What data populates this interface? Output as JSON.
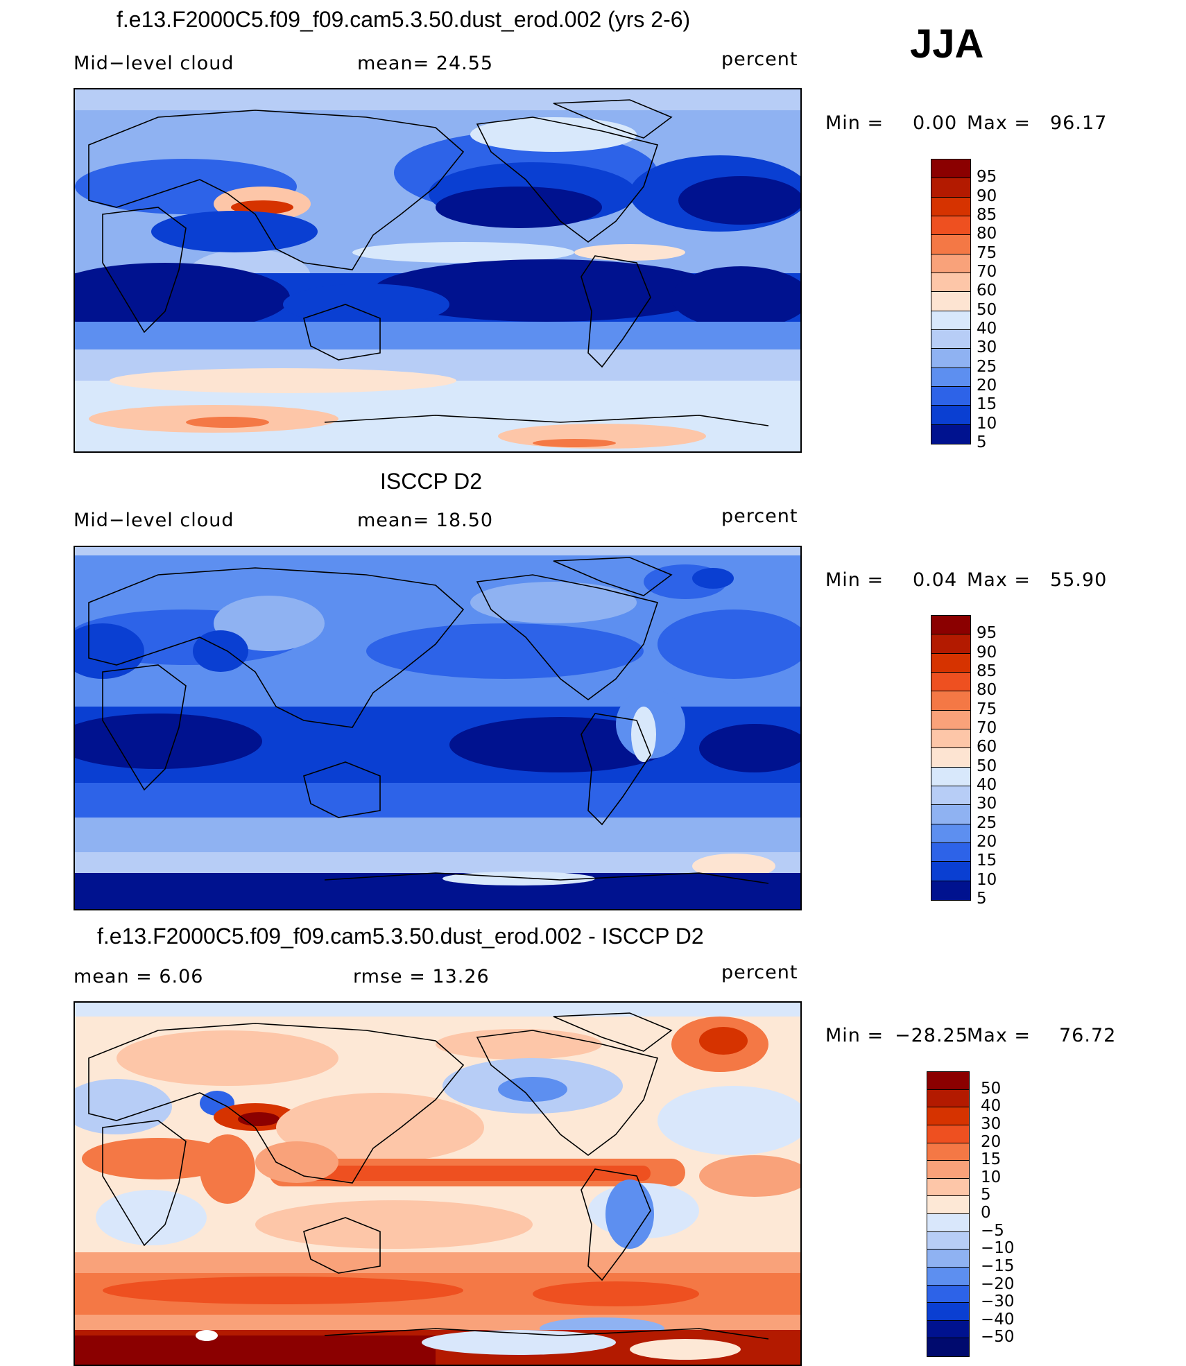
{
  "season": "JJA",
  "units": "percent",
  "panels": [
    {
      "id": "model",
      "title": "f.e13.F2000C5.f09_f09.cam5.3.50.dust_erod.002 (yrs 2-6)",
      "left_label": "Mid−level cloud",
      "center_label": "mean=   24.55",
      "min_label": "Min  =",
      "min_value": "0.00",
      "max_label": "Max  =",
      "max_value": "96.17",
      "levels": [
        "95",
        "90",
        "85",
        "80",
        "75",
        "70",
        "60",
        "50",
        "40",
        "30",
        "25",
        "20",
        "15",
        "10",
        "5"
      ],
      "colors": [
        "#8b0000",
        "#b31a00",
        "#d63300",
        "#ee5020",
        "#f47845",
        "#f9a27a",
        "#fdc6a8",
        "#fde4d2",
        "#d8e8fb",
        "#b7cdf6",
        "#8fb2f2",
        "#5d8ff0",
        "#2d63e8",
        "#0a3fd2",
        "#00128f"
      ]
    },
    {
      "id": "obs",
      "title": "ISCCP D2",
      "left_label": "Mid−level cloud",
      "center_label": "mean=   18.50",
      "min_label": "Min  =",
      "min_value": "0.04",
      "max_label": "Max  =",
      "max_value": "55.90",
      "levels": [
        "95",
        "90",
        "85",
        "80",
        "75",
        "70",
        "60",
        "50",
        "40",
        "30",
        "25",
        "20",
        "15",
        "10",
        "5"
      ],
      "colors": [
        "#8b0000",
        "#b31a00",
        "#d63300",
        "#ee5020",
        "#f47845",
        "#f9a27a",
        "#fdc6a8",
        "#fde4d2",
        "#d8e8fb",
        "#b7cdf6",
        "#8fb2f2",
        "#5d8ff0",
        "#2d63e8",
        "#0a3fd2",
        "#00128f"
      ]
    },
    {
      "id": "diff",
      "title": "f.e13.F2000C5.f09_f09.cam5.3.50.dust_erod.002 - ISCCP D2",
      "left_label": "mean  =      6.06",
      "center_label": "rmse  =     13.26",
      "min_label": "Min  =",
      "min_value": "−28.25",
      "max_label": "Max  =",
      "max_value": "76.72",
      "levels": [
        "50",
        "40",
        "30",
        "20",
        "15",
        "10",
        "5",
        "0",
        "−5",
        "−10",
        "−15",
        "−20",
        "−30",
        "−40",
        "−50"
      ],
      "colors": [
        "#8b0000",
        "#b31a00",
        "#d63300",
        "#ee5020",
        "#f47845",
        "#f9a27a",
        "#fdc6a8",
        "#fde8d6",
        "#d9e7fb",
        "#b7cdf6",
        "#8fb2f2",
        "#5d8ff0",
        "#2d63e8",
        "#0a3fd2",
        "#00128f",
        "#000a6e"
      ]
    }
  ]
}
